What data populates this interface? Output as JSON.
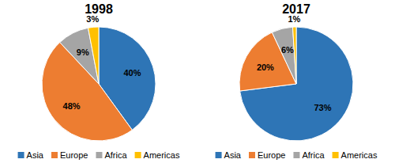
{
  "chart_data": [
    {
      "type": "pie",
      "title": "1998",
      "categories": [
        "Asia",
        "Europe",
        "Africa",
        "Americas"
      ],
      "values": [
        40,
        48,
        9,
        3
      ],
      "value_labels": [
        "40%",
        "48%",
        "9%",
        "3%"
      ],
      "colors": [
        "#2e75b6",
        "#ed7d31",
        "#a5a5a5",
        "#ffc000"
      ],
      "data_labels": true,
      "legend": "bottom"
    },
    {
      "type": "pie",
      "title": "2017",
      "categories": [
        "Asia",
        "Europe",
        "Africa",
        "Americas"
      ],
      "values": [
        73,
        20,
        6,
        1
      ],
      "value_labels": [
        "73%",
        "20%",
        "6%",
        "1%"
      ],
      "colors": [
        "#2e75b6",
        "#ed7d31",
        "#a5a5a5",
        "#ffc000"
      ],
      "data_labels": true,
      "legend": "bottom"
    }
  ]
}
